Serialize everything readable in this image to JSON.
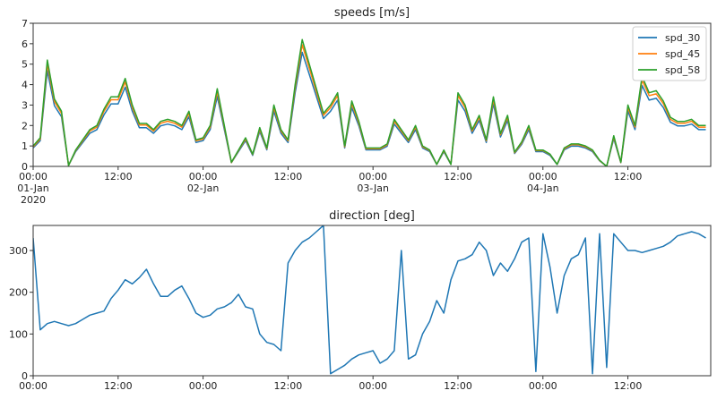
{
  "chart_data": [
    {
      "type": "line",
      "title": "speeds [m/s]",
      "time_start": "2020-01-01 00:00",
      "interval": "1h",
      "ylim": [
        0,
        7
      ],
      "yticks": [
        0,
        1,
        2,
        3,
        4,
        5,
        6,
        7
      ],
      "xtick_labels": [
        {
          "hour": 0,
          "time": "00:00",
          "date": "01-Jan",
          "year": "2020"
        },
        {
          "hour": 12,
          "time": "12:00"
        },
        {
          "hour": 24,
          "time": "00:00",
          "date": "02-Jan"
        },
        {
          "hour": 36,
          "time": "12:00"
        },
        {
          "hour": 48,
          "time": "00:00",
          "date": "03-Jan"
        },
        {
          "hour": 60,
          "time": "12:00"
        },
        {
          "hour": 72,
          "time": "00:00",
          "date": "04-Jan"
        },
        {
          "hour": 84,
          "time": "12:00"
        }
      ],
      "legend_position": "top-right",
      "grid": false,
      "series": [
        {
          "name": "spd_30",
          "color": "#1f77b4",
          "values": [
            0.9,
            1.26,
            4.68,
            2.97,
            2.43,
            0.05,
            0.72,
            1.17,
            1.62,
            1.8,
            2.52,
            3.06,
            3.06,
            3.87,
            2.7,
            1.89,
            1.89,
            1.62,
            1.98,
            2.07,
            1.98,
            1.8,
            2.43,
            1.17,
            1.26,
            1.8,
            3.42,
            1.8,
            0.18,
            0.72,
            1.26,
            0.54,
            1.71,
            0.81,
            2.7,
            1.62,
            1.17,
            3.6,
            5.58,
            4.5,
            3.42,
            2.34,
            2.7,
            3.24,
            0.9,
            2.88,
            1.98,
            0.81,
            0.81,
            0.81,
            0.99,
            2.07,
            1.62,
            1.17,
            1.8,
            0.9,
            0.72,
            0.09,
            0.72,
            0.09,
            3.24,
            2.7,
            1.62,
            2.25,
            1.17,
            3.06,
            1.44,
            2.25,
            0.63,
            1.08,
            1.8,
            0.72,
            0.72,
            0.54,
            0.09,
            0.81,
            0.99,
            0.99,
            0.9,
            0.72,
            0.27,
            0.0,
            1.35,
            0.18,
            2.7,
            1.8,
            3.96,
            3.24,
            3.33,
            2.88,
            2.16,
            1.98,
            1.98,
            2.07,
            1.8,
            1.8
          ]
        },
        {
          "name": "spd_45",
          "color": "#ff7f0e",
          "values": [
            0.96,
            1.34,
            5.0,
            3.17,
            2.59,
            0.05,
            0.77,
            1.25,
            1.73,
            1.92,
            2.69,
            3.26,
            3.26,
            4.13,
            2.88,
            2.02,
            2.02,
            1.73,
            2.11,
            2.21,
            2.11,
            1.92,
            2.59,
            1.25,
            1.34,
            1.92,
            3.65,
            1.92,
            0.19,
            0.77,
            1.34,
            0.58,
            1.82,
            0.86,
            2.88,
            1.73,
            1.25,
            3.84,
            5.95,
            4.8,
            3.65,
            2.5,
            2.88,
            3.46,
            0.96,
            3.07,
            2.11,
            0.86,
            0.86,
            0.86,
            1.06,
            2.21,
            1.73,
            1.25,
            1.92,
            0.96,
            0.77,
            0.1,
            0.77,
            0.1,
            3.46,
            2.88,
            1.73,
            2.4,
            1.25,
            3.26,
            1.54,
            2.4,
            0.67,
            1.15,
            1.92,
            0.77,
            0.77,
            0.58,
            0.1,
            0.86,
            1.06,
            1.06,
            0.96,
            0.77,
            0.29,
            0.0,
            1.44,
            0.19,
            2.88,
            1.92,
            4.22,
            3.46,
            3.55,
            3.07,
            2.3,
            2.11,
            2.11,
            2.21,
            1.92,
            1.92
          ]
        },
        {
          "name": "spd_58",
          "color": "#2ca02c",
          "values": [
            1.0,
            1.4,
            5.2,
            3.3,
            2.7,
            0.05,
            0.8,
            1.3,
            1.8,
            2.0,
            2.8,
            3.4,
            3.4,
            4.3,
            3.0,
            2.1,
            2.1,
            1.8,
            2.2,
            2.3,
            2.2,
            2.0,
            2.7,
            1.3,
            1.4,
            2.0,
            3.8,
            2.0,
            0.2,
            0.8,
            1.4,
            0.6,
            1.9,
            0.9,
            3.0,
            1.8,
            1.3,
            4.0,
            6.2,
            5.0,
            3.8,
            2.6,
            3.0,
            3.6,
            1.0,
            3.2,
            2.2,
            0.9,
            0.9,
            0.9,
            1.1,
            2.3,
            1.8,
            1.3,
            2.0,
            1.0,
            0.8,
            0.1,
            0.8,
            0.1,
            3.6,
            3.0,
            1.8,
            2.5,
            1.3,
            3.4,
            1.6,
            2.5,
            0.7,
            1.2,
            2.0,
            0.8,
            0.8,
            0.6,
            0.1,
            0.9,
            1.1,
            1.1,
            1.0,
            0.8,
            0.3,
            0.0,
            1.5,
            0.2,
            3.0,
            2.0,
            4.4,
            3.6,
            3.7,
            3.2,
            2.4,
            2.2,
            2.2,
            2.3,
            2.0,
            2.0
          ]
        }
      ]
    },
    {
      "type": "line",
      "title": "direction [deg]",
      "time_start": "2020-01-01 00:00",
      "interval": "1h",
      "ylim": [
        0,
        360
      ],
      "yticks": [
        0,
        100,
        200,
        300
      ],
      "xtick_labels": [
        {
          "hour": 0,
          "time": "00:00"
        },
        {
          "hour": 12,
          "time": "12:00"
        },
        {
          "hour": 24,
          "time": "00:00"
        },
        {
          "hour": 36,
          "time": "12:00"
        },
        {
          "hour": 48,
          "time": "00:00"
        },
        {
          "hour": 60,
          "time": "12:00"
        },
        {
          "hour": 72,
          "time": "00:00"
        },
        {
          "hour": 84,
          "time": "12:00"
        }
      ],
      "grid": false,
      "series": [
        {
          "color": "#1f77b4",
          "values": [
            330,
            110,
            125,
            130,
            125,
            120,
            125,
            135,
            145,
            150,
            155,
            185,
            205,
            230,
            220,
            235,
            255,
            220,
            190,
            190,
            205,
            215,
            185,
            150,
            140,
            145,
            160,
            165,
            175,
            195,
            165,
            160,
            100,
            80,
            75,
            60,
            270,
            300,
            320,
            330,
            345,
            360,
            5,
            15,
            25,
            40,
            50,
            55,
            60,
            30,
            40,
            60,
            300,
            40,
            50,
            100,
            130,
            180,
            150,
            230,
            275,
            280,
            290,
            320,
            300,
            240,
            270,
            250,
            280,
            320,
            330,
            10,
            340,
            260,
            150,
            240,
            280,
            290,
            330,
            5,
            340,
            20,
            340,
            320,
            300,
            300,
            295,
            300,
            305,
            310,
            320,
            335,
            340,
            345,
            340,
            330
          ]
        }
      ]
    }
  ]
}
